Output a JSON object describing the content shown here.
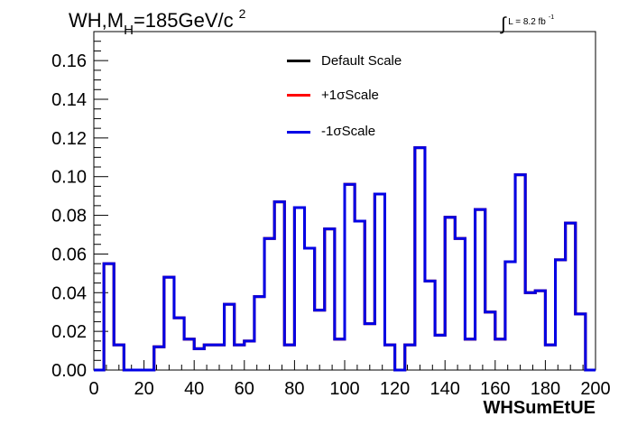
{
  "header": {
    "title_main": "WH,M",
    "title_sub": "H",
    "title_rest": "=185GeV/c",
    "title_sup": "2",
    "lumi_text": "L = 8.2 fb",
    "lumi_sup": "-1"
  },
  "chart_data": {
    "type": "line",
    "xlabel": "WHSumEtUE",
    "ylabel": "",
    "xlim": [
      0,
      200
    ],
    "ylim": [
      0,
      0.175
    ],
    "x_ticks": [
      "0",
      "20",
      "40",
      "60",
      "80",
      "100",
      "120",
      "140",
      "160",
      "180",
      "200"
    ],
    "y_ticks": [
      "0.00",
      "0.02",
      "0.04",
      "0.06",
      "0.08",
      "0.10",
      "0.12",
      "0.14",
      "0.16"
    ],
    "legend_position": "top-center",
    "bin_width": 4,
    "bin_edges_start": 0,
    "series": [
      {
        "name": "Default Scale",
        "color": "#000000",
        "values": [
          0,
          0.055,
          0.013,
          0,
          0,
          0,
          0.012,
          0.048,
          0.027,
          0.016,
          0.011,
          0.013,
          0.013,
          0.034,
          0.013,
          0.015,
          0.038,
          0.068,
          0.087,
          0.013,
          0.084,
          0.063,
          0.031,
          0.073,
          0.016,
          0.096,
          0.077,
          0.024,
          0.091,
          0.013,
          0,
          0.013,
          0.115,
          0.046,
          0.018,
          0.079,
          0.068,
          0.016,
          0.083,
          0.03,
          0.016,
          0.056,
          0.101,
          0.04,
          0.041,
          0.013,
          0.057,
          0.076,
          0.029,
          0
        ]
      },
      {
        "name": "+1σScale",
        "color": "#ff0000",
        "values": [
          0,
          0.055,
          0.013,
          0,
          0,
          0,
          0.012,
          0.048,
          0.027,
          0.016,
          0.011,
          0.013,
          0.013,
          0.034,
          0.013,
          0.015,
          0.038,
          0.068,
          0.087,
          0.013,
          0.084,
          0.063,
          0.031,
          0.073,
          0.016,
          0.096,
          0.077,
          0.024,
          0.091,
          0.013,
          0,
          0.013,
          0.115,
          0.046,
          0.018,
          0.079,
          0.068,
          0.016,
          0.083,
          0.03,
          0.016,
          0.056,
          0.101,
          0.04,
          0.041,
          0.013,
          0.057,
          0.076,
          0.029,
          0
        ]
      },
      {
        "name": "-1σScale",
        "color": "#0000e6",
        "values": [
          0,
          0.055,
          0.013,
          0,
          0,
          0,
          0.012,
          0.048,
          0.027,
          0.016,
          0.011,
          0.013,
          0.013,
          0.034,
          0.013,
          0.015,
          0.038,
          0.068,
          0.087,
          0.013,
          0.084,
          0.063,
          0.031,
          0.073,
          0.016,
          0.096,
          0.077,
          0.024,
          0.091,
          0.013,
          0,
          0.013,
          0.115,
          0.046,
          0.018,
          0.079,
          0.068,
          0.016,
          0.083,
          0.03,
          0.016,
          0.056,
          0.101,
          0.04,
          0.041,
          0.013,
          0.057,
          0.076,
          0.029,
          0
        ]
      }
    ]
  }
}
